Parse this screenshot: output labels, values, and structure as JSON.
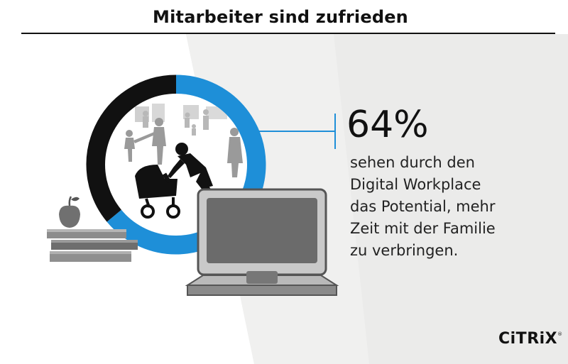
{
  "header": {
    "title": "Mitarbeiter sind zufrieden"
  },
  "chart_data": {
    "type": "pie",
    "title": "Mitarbeiter sind zufrieden",
    "values": [
      64,
      36
    ],
    "categories": [
      "sehen durch den Digital Workplace das Potential, mehr Zeit mit der Familie zu verbringen",
      ""
    ],
    "colors": [
      "#1e8fd8",
      "#111111"
    ],
    "labels": [
      "64%"
    ]
  },
  "callout": {
    "value": "64%",
    "text": "sehen durch den\nDigital Workplace\ndas Potential, mehr\nZeit mit der Familie\nzu verbringen."
  },
  "logo": {
    "text": "CiTRiX",
    "mark": "®"
  },
  "icons": [
    "apple-icon",
    "books-icon",
    "laptop-icon",
    "family-silhouettes",
    "stroller-icon"
  ],
  "colors": {
    "accent": "#1e8fd8",
    "ring_dark": "#111111",
    "background_gray": "#ebebea"
  }
}
